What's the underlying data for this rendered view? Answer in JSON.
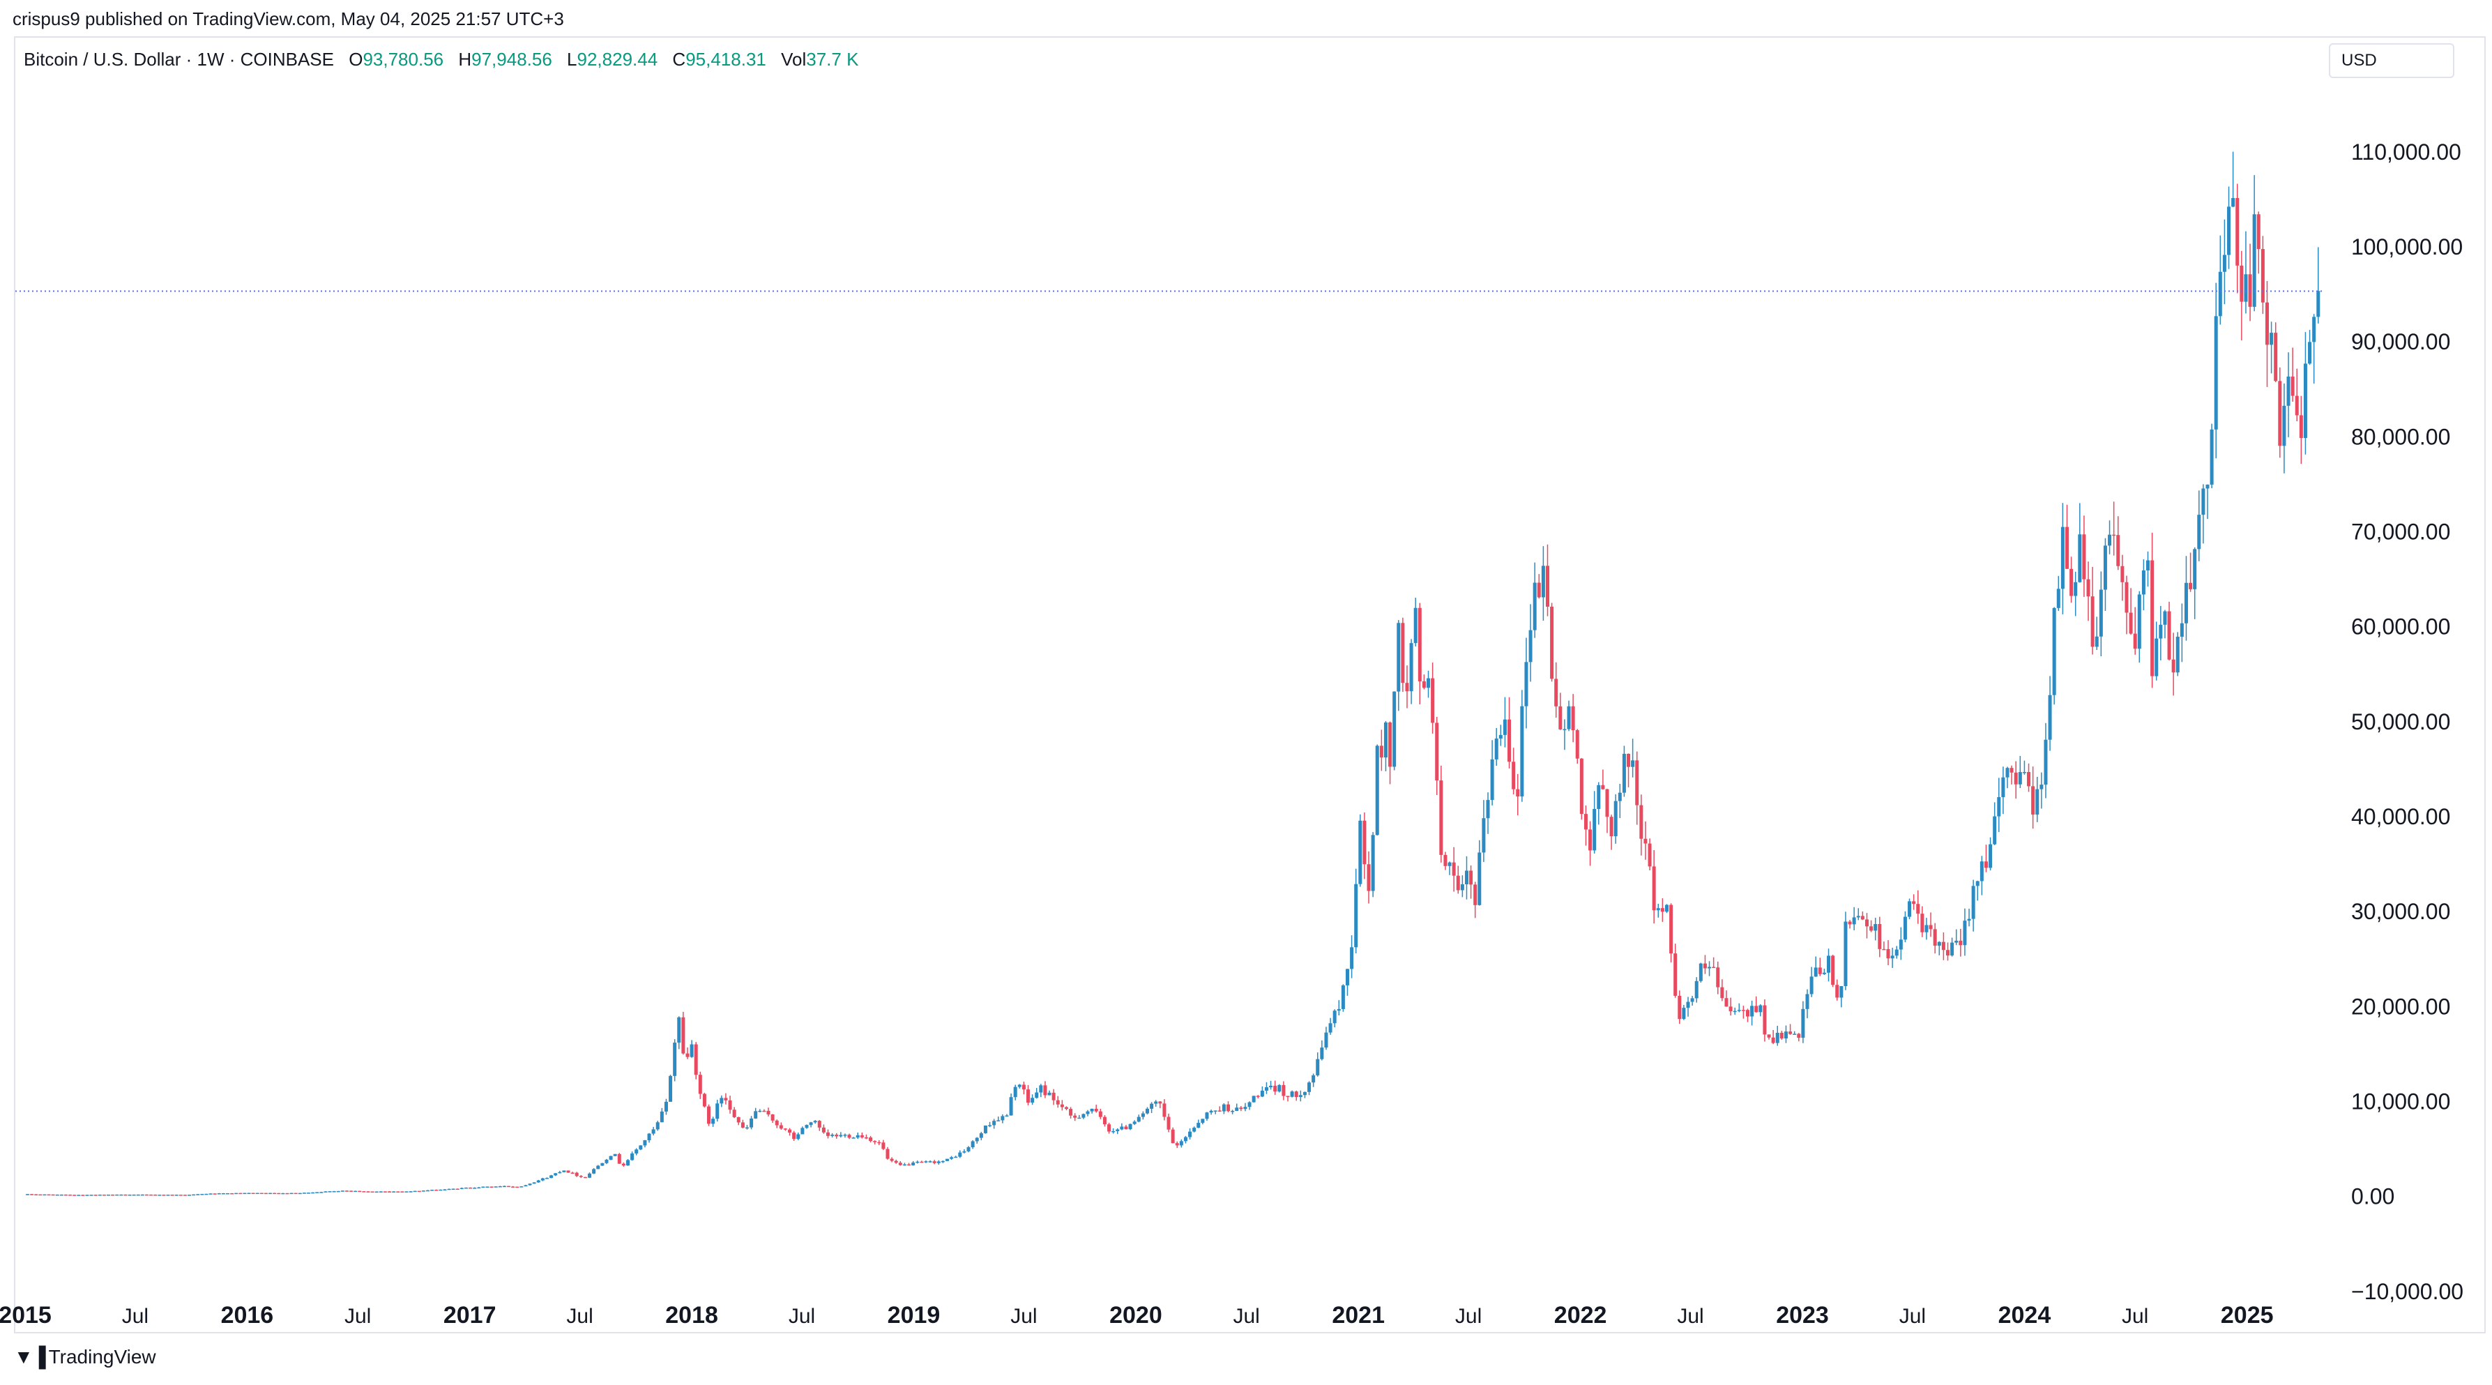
{
  "header": {
    "publisher_line": "crispus9 published on TradingView.com, May 04, 2025 21:57 UTC+3"
  },
  "legend": {
    "symbol": "Bitcoin / U.S. Dollar · 1W · COINBASE",
    "o_label": "O",
    "o_value": "93,780.56",
    "h_label": "H",
    "h_value": "97,948.56",
    "l_label": "L",
    "l_value": "92,829.44",
    "c_label": "C",
    "c_value": "95,418.31",
    "vol_label": "Vol",
    "vol_value": "37.7 K"
  },
  "currency_button": "USD",
  "footer": {
    "logo_text": "TradingView",
    "logo_icon": "tradingview-logo-icon"
  },
  "colors": {
    "up": "#2b8ac2",
    "down": "#e8495f",
    "price_line": "#5b6cff",
    "text": "#131722",
    "grid_border": "#e0e3eb",
    "legend_value": "#089981"
  },
  "chart_data": {
    "type": "candlestick",
    "interval": "1W",
    "x_range": [
      "2015-01-01",
      "2025-05-04"
    ],
    "ylim": [
      -12000,
      118000
    ],
    "y_ticks": [
      -10000,
      0,
      10000,
      20000,
      30000,
      40000,
      50000,
      60000,
      70000,
      80000,
      90000,
      100000,
      110000
    ],
    "y_tick_labels": [
      "−10,000.00",
      "0.00",
      "10,000.00",
      "20,000.00",
      "30,000.00",
      "40,000.00",
      "50,000.00",
      "60,000.00",
      "70,000.00",
      "80,000.00",
      "90,000.00",
      "100,000.00",
      "110,000.00"
    ],
    "x_ticks": [
      {
        "date": "2015-01-01",
        "label": "2015",
        "bold": true
      },
      {
        "date": "2015-07-01",
        "label": "Jul",
        "bold": false
      },
      {
        "date": "2016-01-01",
        "label": "2016",
        "bold": true
      },
      {
        "date": "2016-07-01",
        "label": "Jul",
        "bold": false
      },
      {
        "date": "2017-01-01",
        "label": "2017",
        "bold": true
      },
      {
        "date": "2017-07-01",
        "label": "Jul",
        "bold": false
      },
      {
        "date": "2018-01-01",
        "label": "2018",
        "bold": true
      },
      {
        "date": "2018-07-01",
        "label": "Jul",
        "bold": false
      },
      {
        "date": "2019-01-01",
        "label": "2019",
        "bold": true
      },
      {
        "date": "2019-07-01",
        "label": "Jul",
        "bold": false
      },
      {
        "date": "2020-01-01",
        "label": "2020",
        "bold": true
      },
      {
        "date": "2020-07-01",
        "label": "Jul",
        "bold": false
      },
      {
        "date": "2021-01-01",
        "label": "2021",
        "bold": true
      },
      {
        "date": "2021-07-01",
        "label": "Jul",
        "bold": false
      },
      {
        "date": "2022-01-01",
        "label": "2022",
        "bold": true
      },
      {
        "date": "2022-07-01",
        "label": "Jul",
        "bold": false
      },
      {
        "date": "2023-01-01",
        "label": "2023",
        "bold": true
      },
      {
        "date": "2023-07-01",
        "label": "Jul",
        "bold": false
      },
      {
        "date": "2024-01-01",
        "label": "2024",
        "bold": true
      },
      {
        "date": "2024-07-01",
        "label": "Jul",
        "bold": false
      },
      {
        "date": "2025-01-01",
        "label": "2025",
        "bold": true
      }
    ],
    "current_price": 95418.31,
    "price_line_style": "dotted",
    "series": [
      {
        "points": [
          [
            "2015-01-05",
            315
          ],
          [
            "2015-04-01",
            240
          ],
          [
            "2015-07-01",
            270
          ],
          [
            "2015-10-01",
            245
          ],
          [
            "2015-11-10",
            380
          ],
          [
            "2016-01-01",
            430
          ],
          [
            "2016-04-01",
            420
          ],
          [
            "2016-06-15",
            700
          ],
          [
            "2016-08-01",
            580
          ],
          [
            "2016-10-01",
            610
          ],
          [
            "2016-12-20",
            900
          ],
          [
            "2017-01-05",
            1000
          ],
          [
            "2017-03-01",
            1150
          ],
          [
            "2017-04-01",
            1100
          ],
          [
            "2017-05-20",
            2200
          ],
          [
            "2017-06-10",
            2900
          ],
          [
            "2017-07-15",
            2000
          ],
          [
            "2017-08-10",
            3500
          ],
          [
            "2017-09-01",
            4700
          ],
          [
            "2017-09-15",
            3200
          ],
          [
            "2017-10-20",
            5800
          ],
          [
            "2017-11-10",
            7300
          ],
          [
            "2017-11-28",
            10000
          ],
          [
            "2017-12-10",
            16000
          ],
          [
            "2017-12-17",
            19200
          ],
          [
            "2017-12-28",
            14000
          ],
          [
            "2018-01-08",
            16000
          ],
          [
            "2018-01-20",
            11500
          ],
          [
            "2018-02-05",
            7500
          ],
          [
            "2018-03-01",
            11000
          ],
          [
            "2018-03-20",
            8500
          ],
          [
            "2018-04-05",
            6800
          ],
          [
            "2018-04-25",
            9300
          ],
          [
            "2018-05-20",
            8200
          ],
          [
            "2018-06-25",
            6200
          ],
          [
            "2018-07-25",
            8200
          ],
          [
            "2018-08-15",
            6400
          ],
          [
            "2018-09-15",
            6500
          ],
          [
            "2018-10-15",
            6500
          ],
          [
            "2018-11-15",
            5600
          ],
          [
            "2018-11-26",
            4000
          ],
          [
            "2018-12-15",
            3300
          ],
          [
            "2019-01-15",
            3600
          ],
          [
            "2019-03-01",
            3800
          ],
          [
            "2019-04-05",
            5000
          ],
          [
            "2019-05-15",
            8000
          ],
          [
            "2019-06-10",
            8500
          ],
          [
            "2019-06-26",
            12500
          ],
          [
            "2019-07-15",
            10000
          ],
          [
            "2019-08-05",
            11500
          ],
          [
            "2019-09-01",
            10000
          ],
          [
            "2019-09-25",
            8300
          ],
          [
            "2019-10-28",
            9300
          ],
          [
            "2019-11-25",
            7100
          ],
          [
            "2019-12-20",
            7200
          ],
          [
            "2020-01-15",
            8700
          ],
          [
            "2020-02-15",
            10000
          ],
          [
            "2020-03-13",
            5000
          ],
          [
            "2020-04-01",
            6600
          ],
          [
            "2020-05-01",
            8700
          ],
          [
            "2020-06-01",
            9500
          ],
          [
            "2020-07-01",
            9100
          ],
          [
            "2020-07-28",
            11000
          ],
          [
            "2020-09-01",
            11500
          ],
          [
            "2020-09-15",
            10500
          ],
          [
            "2020-10-15",
            11500
          ],
          [
            "2020-11-01",
            13800
          ],
          [
            "2020-11-20",
            18500
          ],
          [
            "2020-12-01",
            19000
          ],
          [
            "2020-12-20",
            23500
          ],
          [
            "2021-01-01",
            29000
          ],
          [
            "2021-01-08",
            40000
          ],
          [
            "2021-01-25",
            32000
          ],
          [
            "2021-02-08",
            46000
          ],
          [
            "2021-02-22",
            49000
          ],
          [
            "2021-03-01",
            46000
          ],
          [
            "2021-03-13",
            60000
          ],
          [
            "2021-03-25",
            52000
          ],
          [
            "2021-04-13",
            61000
          ],
          [
            "2021-04-22",
            50000
          ],
          [
            "2021-05-05",
            57000
          ],
          [
            "2021-05-15",
            46000
          ],
          [
            "2021-05-20",
            37000
          ],
          [
            "2021-06-01",
            36000
          ],
          [
            "2021-06-22",
            31000
          ],
          [
            "2021-07-08",
            34000
          ],
          [
            "2021-07-20",
            30000
          ],
          [
            "2021-08-01",
            40000
          ],
          [
            "2021-08-20",
            47000
          ],
          [
            "2021-09-05",
            51000
          ],
          [
            "2021-09-25",
            42000
          ],
          [
            "2021-10-10",
            56000
          ],
          [
            "2021-10-20",
            63000
          ],
          [
            "2021-11-10",
            66000
          ],
          [
            "2021-11-20",
            57000
          ],
          [
            "2021-12-05",
            49000
          ],
          [
            "2021-12-25",
            50500
          ],
          [
            "2022-01-10",
            42000
          ],
          [
            "2022-01-24",
            36500
          ],
          [
            "2022-02-10",
            44000
          ],
          [
            "2022-02-25",
            38500
          ],
          [
            "2022-03-28",
            47000
          ],
          [
            "2022-04-15",
            40500
          ],
          [
            "2022-05-09",
            31000
          ],
          [
            "2022-05-30",
            30000
          ],
          [
            "2022-06-13",
            22000
          ],
          [
            "2022-06-18",
            19000
          ],
          [
            "2022-07-10",
            21000
          ],
          [
            "2022-07-25",
            23800
          ],
          [
            "2022-08-15",
            24000
          ],
          [
            "2022-08-25",
            20500
          ],
          [
            "2022-09-15",
            19500
          ],
          [
            "2022-10-10",
            19300
          ],
          [
            "2022-11-01",
            20500
          ],
          [
            "2022-11-09",
            16500
          ],
          [
            "2022-12-10",
            17200
          ],
          [
            "2023-01-01",
            16600
          ],
          [
            "2023-01-15",
            21000
          ],
          [
            "2023-01-28",
            23500
          ],
          [
            "2023-02-20",
            24500
          ],
          [
            "2023-03-10",
            20000
          ],
          [
            "2023-03-20",
            28000
          ],
          [
            "2023-04-12",
            30300
          ],
          [
            "2023-05-15",
            27000
          ],
          [
            "2023-06-15",
            25000
          ],
          [
            "2023-06-24",
            30500
          ],
          [
            "2023-07-15",
            30000
          ],
          [
            "2023-08-17",
            26000
          ],
          [
            "2023-09-10",
            25800
          ],
          [
            "2023-09-25",
            26500
          ],
          [
            "2023-10-23",
            34500
          ],
          [
            "2023-11-15",
            37000
          ],
          [
            "2023-12-05",
            44000
          ],
          [
            "2024-01-11",
            46000
          ],
          [
            "2024-01-23",
            39500
          ],
          [
            "2024-02-10",
            47000
          ],
          [
            "2024-02-28",
            62000
          ],
          [
            "2024-03-14",
            71000
          ],
          [
            "2024-03-20",
            62500
          ],
          [
            "2024-04-08",
            70000
          ],
          [
            "2024-04-20",
            64000
          ],
          [
            "2024-05-01",
            58000
          ],
          [
            "2024-05-20",
            69000
          ],
          [
            "2024-06-05",
            70500
          ],
          [
            "2024-06-25",
            61000
          ],
          [
            "2024-07-05",
            56000
          ],
          [
            "2024-07-28",
            68000
          ],
          [
            "2024-08-05",
            54000
          ],
          [
            "2024-08-25",
            64000
          ],
          [
            "2024-09-06",
            53500
          ],
          [
            "2024-09-28",
            65500
          ],
          [
            "2024-10-15",
            67500
          ],
          [
            "2024-10-29",
            72500
          ],
          [
            "2024-11-10",
            80500
          ],
          [
            "2024-11-13",
            90000
          ],
          [
            "2024-11-22",
            98500
          ],
          [
            "2024-12-05",
            100000
          ],
          [
            "2024-12-17",
            106000
          ],
          [
            "2024-12-25",
            94500
          ],
          [
            "2025-01-05",
            98000
          ],
          [
            "2025-01-13",
            92000
          ],
          [
            "2025-01-20",
            104500
          ],
          [
            "2025-02-03",
            96500
          ],
          [
            "2025-02-25",
            86000
          ],
          [
            "2025-03-03",
            79000
          ],
          [
            "2025-03-18",
            84500
          ],
          [
            "2025-04-01",
            82500
          ],
          [
            "2025-04-07",
            77500
          ],
          [
            "2025-04-14",
            85000
          ],
          [
            "2025-04-21",
            93500
          ],
          [
            "2025-04-28",
            95418
          ]
        ]
      }
    ]
  }
}
